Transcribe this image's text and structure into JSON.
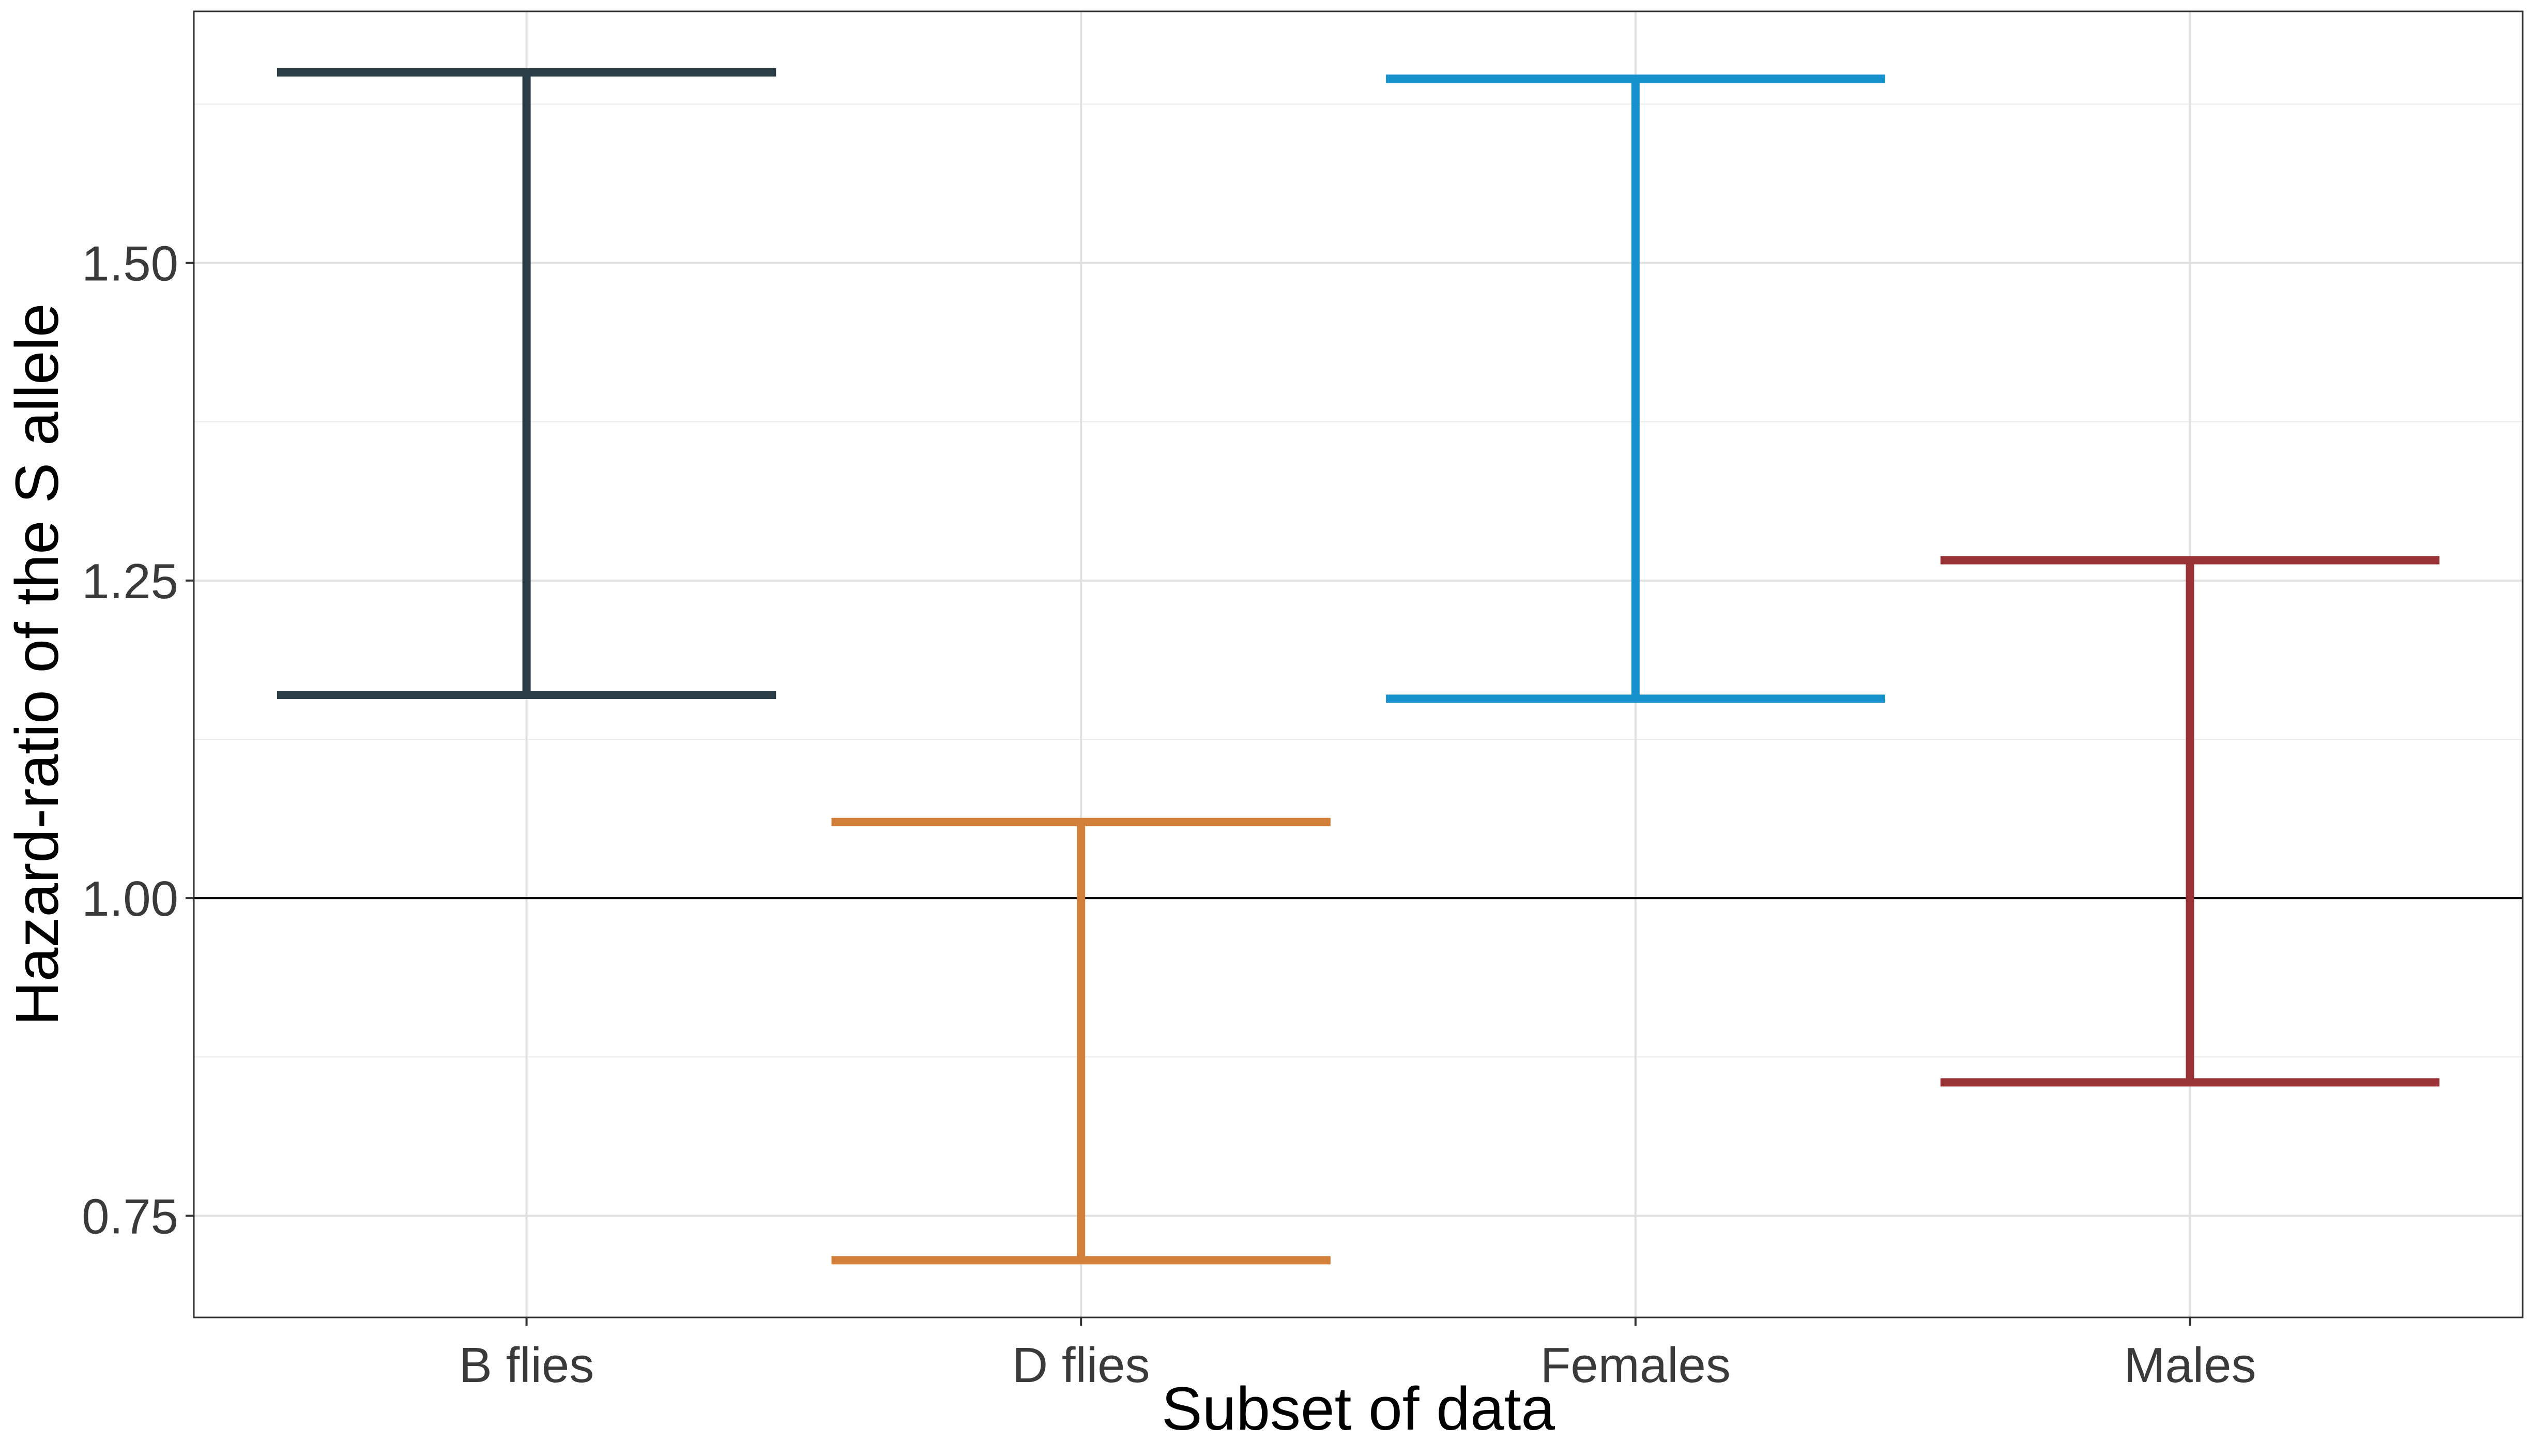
{
  "chart_data": {
    "type": "errorbar",
    "xlabel": "Subset of data",
    "ylabel": "Hazard-ratio of the S allele",
    "categories": [
      "B flies",
      "D flies",
      "Females",
      "Males"
    ],
    "series": [
      {
        "category": "B flies",
        "lower": 1.16,
        "upper": 1.65,
        "color": "#2b3d47"
      },
      {
        "category": "D flies",
        "lower": 0.715,
        "upper": 1.06,
        "color": "#d27f3a"
      },
      {
        "category": "Females",
        "lower": 1.157,
        "upper": 1.645,
        "color": "#1791ce"
      },
      {
        "category": "Males",
        "lower": 0.855,
        "upper": 1.266,
        "color": "#983235"
      }
    ],
    "y_ticks": [
      "0.75",
      "1.00",
      "1.25",
      "1.50"
    ],
    "y_tick_values": [
      0.75,
      1.0,
      1.25,
      1.5
    ],
    "ylim": [
      0.67,
      1.698
    ],
    "reference_line": 1.0,
    "grid": true,
    "legend": "none"
  }
}
